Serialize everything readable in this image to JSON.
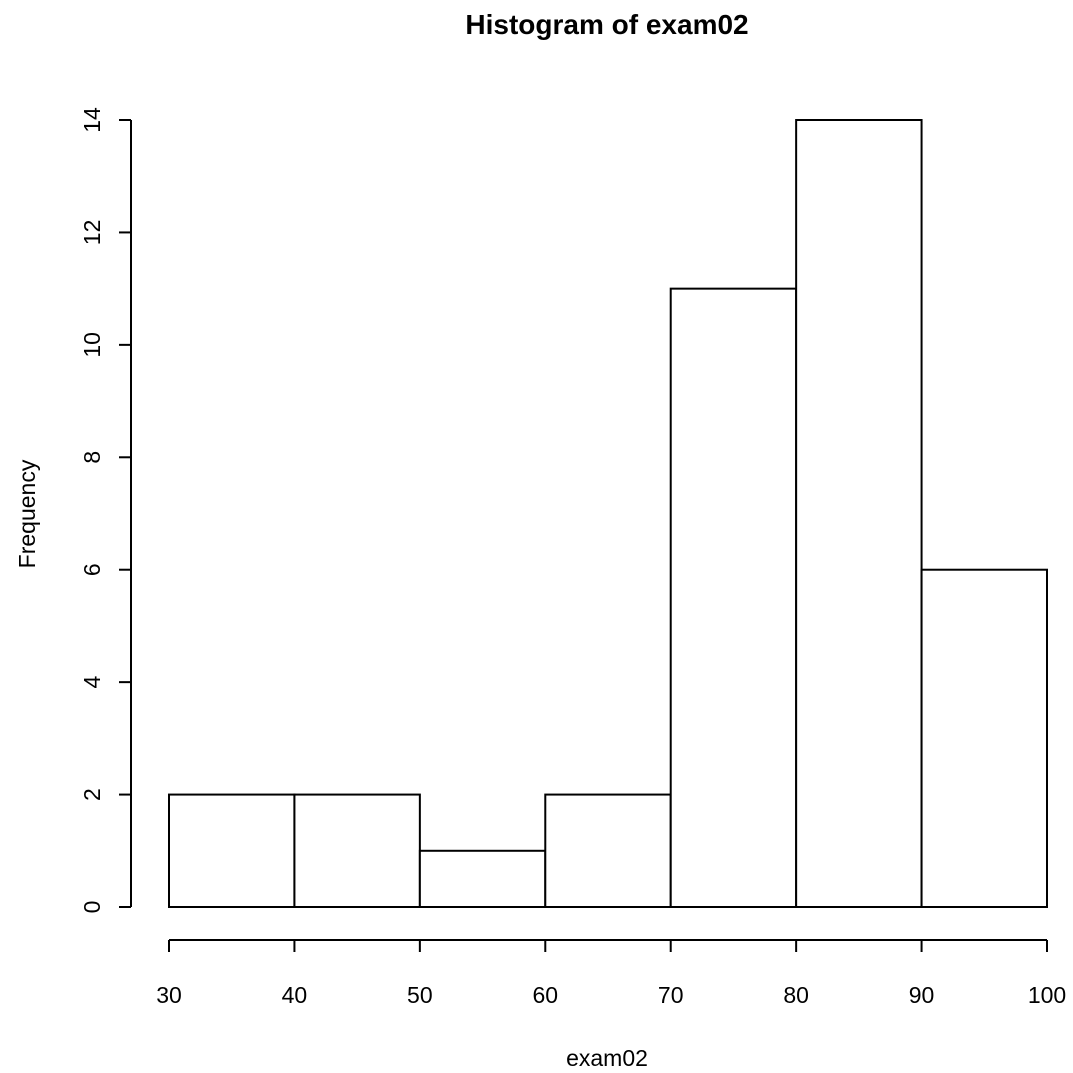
{
  "chart_data": {
    "type": "bar",
    "title": "Histogram of exam02",
    "xlabel": "exam02",
    "ylabel": "Frequency",
    "bins": [
      {
        "from": 30,
        "to": 40,
        "count": 2
      },
      {
        "from": 40,
        "to": 50,
        "count": 2
      },
      {
        "from": 50,
        "to": 60,
        "count": 1
      },
      {
        "from": 60,
        "to": 70,
        "count": 2
      },
      {
        "from": 70,
        "to": 80,
        "count": 11
      },
      {
        "from": 80,
        "to": 90,
        "count": 14
      },
      {
        "from": 90,
        "to": 100,
        "count": 6
      }
    ],
    "x_ticks": [
      "30",
      "40",
      "50",
      "60",
      "70",
      "80",
      "90",
      "100"
    ],
    "y_ticks": [
      "0",
      "2",
      "4",
      "6",
      "8",
      "10",
      "12",
      "14"
    ],
    "xlim": [
      30,
      100
    ],
    "ylim": [
      0,
      14
    ],
    "grid": false,
    "bar_fill": "#ffffff",
    "bar_stroke": "#000000"
  }
}
